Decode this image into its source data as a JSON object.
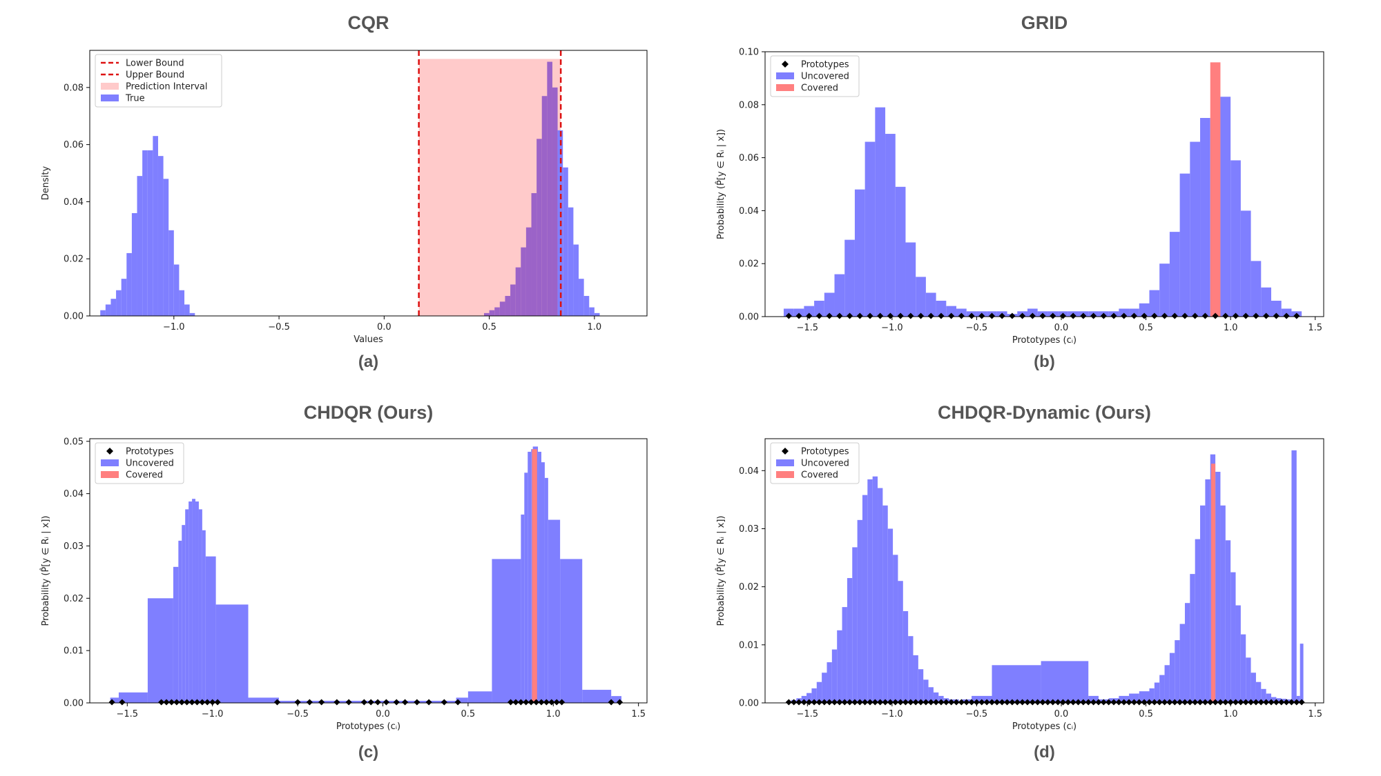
{
  "colors": {
    "uncovered": "#7f7fff",
    "covered": "#ff7f7f",
    "interval": "#ffcaca",
    "bound": "#dd1111",
    "overlap": "#9b63c8",
    "prototype": "#000000"
  },
  "chart_data": [
    {
      "id": "a",
      "type": "bar",
      "title": "CQR",
      "caption": "(a)",
      "xlabel": "Values",
      "ylabel": "Density",
      "xlim": [
        -1.4,
        1.25
      ],
      "ylim": [
        0,
        0.093
      ],
      "xticks": [
        -1.0,
        -0.5,
        0.0,
        0.5,
        1.0
      ],
      "xtick_labels": [
        "−1.0",
        "−0.5",
        "0.0",
        "0.5",
        "1.0"
      ],
      "yticks": [
        0.0,
        0.02,
        0.04,
        0.06,
        0.08
      ],
      "ytick_labels": [
        "0.00",
        "0.02",
        "0.04",
        "0.06",
        "0.08"
      ],
      "legend": [
        "Lower Bound",
        "Upper Bound",
        "Prediction Interval",
        "True"
      ],
      "lower_bound": 0.165,
      "upper_bound": 0.84,
      "interval_height": 0.09,
      "bin_width": 0.025,
      "bins": [
        [
          -1.35,
          0.002
        ],
        [
          -1.325,
          0.004
        ],
        [
          -1.3,
          0.006
        ],
        [
          -1.275,
          0.009
        ],
        [
          -1.25,
          0.013
        ],
        [
          -1.225,
          0.022
        ],
        [
          -1.2,
          0.036
        ],
        [
          -1.175,
          0.049
        ],
        [
          -1.15,
          0.058
        ],
        [
          -1.125,
          0.058
        ],
        [
          -1.1,
          0.063
        ],
        [
          -1.075,
          0.056
        ],
        [
          -1.05,
          0.048
        ],
        [
          -1.025,
          0.03
        ],
        [
          -1.0,
          0.018
        ],
        [
          -0.975,
          0.009
        ],
        [
          -0.95,
          0.004
        ],
        [
          -0.925,
          0.001
        ],
        [
          0.475,
          0.001
        ],
        [
          0.5,
          0.002
        ],
        [
          0.525,
          0.003
        ],
        [
          0.55,
          0.005
        ],
        [
          0.575,
          0.007
        ],
        [
          0.6,
          0.011
        ],
        [
          0.625,
          0.017
        ],
        [
          0.65,
          0.024
        ],
        [
          0.675,
          0.031
        ],
        [
          0.7,
          0.043
        ],
        [
          0.725,
          0.062
        ],
        [
          0.75,
          0.077
        ],
        [
          0.775,
          0.089
        ],
        [
          0.8,
          0.08
        ],
        [
          0.825,
          0.065
        ],
        [
          0.85,
          0.052
        ],
        [
          0.875,
          0.038
        ],
        [
          0.9,
          0.025
        ],
        [
          0.925,
          0.013
        ],
        [
          0.95,
          0.007
        ],
        [
          0.975,
          0.003
        ],
        [
          1.0,
          0.001
        ]
      ]
    },
    {
      "id": "b",
      "type": "bar",
      "title": "GRID",
      "caption": "(b)",
      "xlabel": "Prototypes (cᵢ)",
      "ylabel": "Probability  (P̂[y ∈ Rᵢ | x])",
      "xlim": [
        -1.75,
        1.55
      ],
      "ylim": [
        0,
        0.1
      ],
      "xticks": [
        -1.5,
        -1.0,
        -0.5,
        0.0,
        0.5,
        1.0,
        1.5
      ],
      "xtick_labels": [
        "−1.5",
        "−1.0",
        "−0.5",
        "0.0",
        "0.5",
        "1.0",
        "1.5"
      ],
      "yticks": [
        0.0,
        0.02,
        0.04,
        0.06,
        0.08,
        0.1
      ],
      "ytick_labels": [
        "0.00",
        "0.02",
        "0.04",
        "0.06",
        "0.08",
        "0.10"
      ],
      "legend": [
        "Prototypes",
        "Uncovered",
        "Covered"
      ],
      "bin_width": 0.06,
      "bins_start": -1.61,
      "values": [
        0.003,
        0.003,
        0.004,
        0.006,
        0.009,
        0.016,
        0.029,
        0.048,
        0.066,
        0.079,
        0.069,
        0.049,
        0.028,
        0.015,
        0.009,
        0.006,
        0.004,
        0.003,
        0.002,
        0.002,
        0.002,
        0.002,
        0.001,
        0.002,
        0.003,
        0.002,
        0.002,
        0.002,
        0.002,
        0.002,
        0.002,
        0.002,
        0.002,
        0.003,
        0.003,
        0.005,
        0.01,
        0.02,
        0.032,
        0.054,
        0.066,
        0.075,
        0.096,
        0.083,
        0.059,
        0.04,
        0.021,
        0.011,
        0.006,
        0.003,
        0.002
      ],
      "covered_bins": [
        42
      ],
      "prototypes": [
        -1.61,
        -1.55,
        -1.49,
        -1.43,
        -1.37,
        -1.31,
        -1.25,
        -1.19,
        -1.13,
        -1.07,
        -1.01,
        -0.95,
        -0.89,
        -0.83,
        -0.77,
        -0.71,
        -0.65,
        -0.59,
        -0.53,
        -0.47,
        -0.41,
        -0.35,
        -0.29,
        -0.23,
        -0.17,
        -0.11,
        -0.05,
        0.01,
        0.07,
        0.13,
        0.19,
        0.25,
        0.31,
        0.37,
        0.43,
        0.49,
        0.55,
        0.61,
        0.67,
        0.73,
        0.79,
        0.85,
        0.91,
        0.97,
        1.03,
        1.09,
        1.15,
        1.21,
        1.27,
        1.33,
        1.39
      ]
    },
    {
      "id": "c",
      "type": "bar",
      "title": "CHDQR (Ours)",
      "caption": "(c)",
      "xlabel": "Prototypes (cᵢ)",
      "ylabel": "Probability  (P̂[y ∈ Rᵢ | x])",
      "xlim": [
        -1.72,
        1.55
      ],
      "ylim": [
        0,
        0.0505
      ],
      "xticks": [
        -1.5,
        -1.0,
        -0.5,
        0.0,
        0.5,
        1.0,
        1.5
      ],
      "xtick_labels": [
        "−1.5",
        "−1.0",
        "−0.5",
        "0.0",
        "0.5",
        "1.0",
        "1.5"
      ],
      "yticks": [
        0.0,
        0.01,
        0.02,
        0.03,
        0.04,
        0.05
      ],
      "ytick_labels": [
        "0.00",
        "0.01",
        "0.02",
        "0.03",
        "0.04",
        "0.05"
      ],
      "legend": [
        "Prototypes",
        "Uncovered",
        "Covered"
      ],
      "bars": [
        [
          -1.6,
          -1.55,
          0.001
        ],
        [
          -1.55,
          -1.38,
          0.002
        ],
        [
          -1.38,
          -1.23,
          0.02
        ],
        [
          -1.23,
          -1.2,
          0.026
        ],
        [
          -1.2,
          -1.18,
          0.031
        ],
        [
          -1.18,
          -1.16,
          0.034
        ],
        [
          -1.16,
          -1.14,
          0.037
        ],
        [
          -1.14,
          -1.12,
          0.0385
        ],
        [
          -1.12,
          -1.1,
          0.039
        ],
        [
          -1.1,
          -1.08,
          0.0385
        ],
        [
          -1.08,
          -1.06,
          0.037
        ],
        [
          -1.06,
          -1.04,
          0.033
        ],
        [
          -1.04,
          -0.98,
          0.028
        ],
        [
          -0.98,
          -0.79,
          0.0188
        ],
        [
          -0.79,
          -0.61,
          0.001
        ],
        [
          -0.61,
          0.43,
          0.0004
        ],
        [
          0.43,
          0.5,
          0.001
        ],
        [
          0.5,
          0.64,
          0.0022
        ],
        [
          0.64,
          0.81,
          0.0275
        ],
        [
          0.81,
          0.83,
          0.036
        ],
        [
          0.83,
          0.85,
          0.044
        ],
        [
          0.85,
          0.87,
          0.048
        ],
        [
          0.87,
          0.88,
          0.0485
        ],
        [
          0.88,
          0.91,
          0.049
        ],
        [
          0.91,
          0.93,
          0.048
        ],
        [
          0.93,
          0.95,
          0.046
        ],
        [
          0.95,
          0.97,
          0.043
        ],
        [
          0.97,
          1.04,
          0.035
        ],
        [
          1.04,
          1.17,
          0.0275
        ],
        [
          1.17,
          1.34,
          0.0025
        ],
        [
          1.34,
          1.4,
          0.0013
        ]
      ],
      "covered_bars": [
        [
          0.875,
          0.905,
          0.0485
        ]
      ],
      "prototypes": [
        -1.59,
        -1.53,
        -1.3,
        -1.27,
        -1.24,
        -1.21,
        -1.18,
        -1.15,
        -1.12,
        -1.09,
        -1.06,
        -1.03,
        -1.0,
        -0.97,
        -0.62,
        -0.5,
        -0.43,
        -0.36,
        -0.27,
        -0.2,
        -0.11,
        -0.07,
        -0.03,
        0.02,
        0.08,
        0.13,
        0.2,
        0.27,
        0.36,
        0.44,
        0.75,
        0.78,
        0.81,
        0.84,
        0.87,
        0.9,
        0.93,
        0.96,
        0.99,
        1.02,
        1.05,
        1.34,
        1.39
      ]
    },
    {
      "id": "d",
      "type": "bar",
      "title": "CHDQR-Dynamic (Ours)",
      "caption": "(d)",
      "xlabel": "Prototypes (cᵢ)",
      "ylabel": "Probability  (P̂[y ∈ Rᵢ | x])",
      "xlim": [
        -1.75,
        1.55
      ],
      "ylim": [
        0,
        0.0455
      ],
      "xticks": [
        -1.5,
        -1.0,
        -0.5,
        0.0,
        0.5,
        1.0,
        1.5
      ],
      "xtick_labels": [
        "−1.5",
        "−1.0",
        "−0.5",
        "0.0",
        "0.5",
        "1.0",
        "1.5"
      ],
      "yticks": [
        0.0,
        0.01,
        0.02,
        0.03,
        0.04
      ],
      "ytick_labels": [
        "0.00",
        "0.01",
        "0.02",
        "0.03",
        "0.04"
      ],
      "legend": [
        "Prototypes",
        "Uncovered",
        "Covered"
      ],
      "bin_width": 0.03,
      "bins_start": -1.61,
      "values": [
        0.0003,
        0.0005,
        0.0008,
        0.0012,
        0.0017,
        0.0025,
        0.0036,
        0.0052,
        0.007,
        0.0092,
        0.0125,
        0.0165,
        0.0215,
        0.0268,
        0.0315,
        0.0358,
        0.0385,
        0.039,
        0.037,
        0.034,
        0.03,
        0.0255,
        0.021,
        0.0158,
        0.0115,
        0.0082,
        0.0058,
        0.004,
        0.0027,
        0.0018,
        0.0012,
        0.0008,
        0.0006,
        0.0006
      ],
      "extra_bars": [
        [
          -0.59,
          -0.53,
          0.0006
        ],
        [
          -0.53,
          -0.41,
          0.0012
        ],
        [
          -0.41,
          -0.12,
          0.0065
        ],
        [
          -0.12,
          0.16,
          0.0072
        ],
        [
          0.16,
          0.22,
          0.0012
        ],
        [
          0.22,
          0.28,
          0.0006
        ],
        [
          0.28,
          0.34,
          0.0008
        ],
        [
          0.34,
          0.4,
          0.0012
        ],
        [
          0.4,
          0.46,
          0.0016
        ],
        [
          0.46,
          0.52,
          0.002
        ],
        [
          0.52,
          0.55,
          0.0025
        ],
        [
          0.55,
          0.58,
          0.0035
        ],
        [
          0.58,
          0.61,
          0.0048
        ],
        [
          0.61,
          0.64,
          0.0065
        ],
        [
          0.64,
          0.67,
          0.0086
        ],
        [
          0.67,
          0.7,
          0.0108
        ],
        [
          0.7,
          0.73,
          0.0136
        ],
        [
          0.73,
          0.76,
          0.0172
        ],
        [
          0.76,
          0.79,
          0.0222
        ],
        [
          0.79,
          0.82,
          0.0282
        ],
        [
          0.82,
          0.85,
          0.034
        ],
        [
          0.85,
          0.88,
          0.0385
        ],
        [
          0.88,
          0.91,
          0.0428
        ],
        [
          0.91,
          0.94,
          0.0398
        ],
        [
          0.94,
          0.97,
          0.034
        ],
        [
          0.97,
          1.0,
          0.028
        ],
        [
          1.0,
          1.03,
          0.0225
        ],
        [
          1.03,
          1.06,
          0.0168
        ],
        [
          1.06,
          1.09,
          0.0118
        ],
        [
          1.09,
          1.12,
          0.0078
        ],
        [
          1.12,
          1.15,
          0.0052
        ],
        [
          1.15,
          1.18,
          0.0036
        ],
        [
          1.18,
          1.21,
          0.0024
        ],
        [
          1.21,
          1.24,
          0.0016
        ],
        [
          1.24,
          1.27,
          0.001
        ],
        [
          1.27,
          1.3,
          0.0008
        ],
        [
          1.3,
          1.33,
          0.0007
        ],
        [
          1.33,
          1.36,
          0.0006
        ],
        [
          1.36,
          1.39,
          0.0435
        ],
        [
          1.39,
          1.41,
          0.0012
        ],
        [
          1.41,
          1.43,
          0.0102
        ]
      ],
      "covered_bars": [
        [
          0.885,
          0.91,
          0.0412
        ]
      ],
      "prototypes_range": [
        -1.61,
        1.42,
        0.03
      ]
    }
  ]
}
